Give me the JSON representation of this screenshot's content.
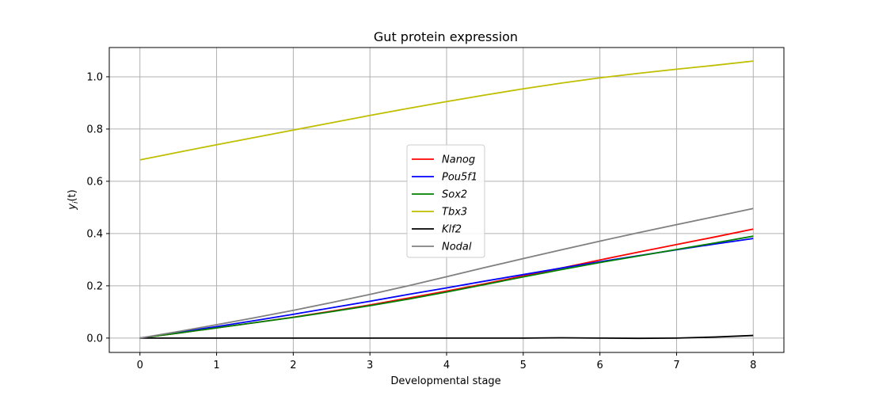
{
  "chart_data": {
    "type": "line",
    "title": "Gut protein expression",
    "xlabel": "Developmental stage",
    "ylabel": "y_i(t)",
    "ylabel_main": "y",
    "ylabel_sub": "i",
    "ylabel_rest": "(t)",
    "xlim": [
      -0.4,
      8.4
    ],
    "ylim": [
      -0.055,
      1.112
    ],
    "xticks": [
      0,
      1,
      2,
      3,
      4,
      5,
      6,
      7,
      8
    ],
    "xtick_labels": [
      "0",
      "1",
      "2",
      "3",
      "4",
      "5",
      "6",
      "7",
      "8"
    ],
    "yticks": [
      0.0,
      0.2,
      0.4,
      0.6,
      0.8,
      1.0
    ],
    "ytick_labels": [
      "0.0",
      "0.2",
      "0.4",
      "0.6",
      "0.8",
      "1.0"
    ],
    "grid": true,
    "legend_position": "center",
    "x": [
      0,
      0.5,
      1,
      1.5,
      2,
      2.5,
      3,
      3.5,
      4,
      4.5,
      5,
      5.5,
      6,
      6.5,
      7,
      7.5,
      8
    ],
    "series": [
      {
        "name": "Nanog",
        "color": "#ff0000",
        "values": [
          0,
          0.019,
          0.039,
          0.059,
          0.08,
          0.103,
          0.127,
          0.153,
          0.18,
          0.208,
          0.238,
          0.268,
          0.299,
          0.329,
          0.358,
          0.387,
          0.417
        ]
      },
      {
        "name": "Pou5f1",
        "color": "#0000ff",
        "values": [
          0,
          0.022,
          0.044,
          0.067,
          0.091,
          0.116,
          0.141,
          0.167,
          0.192,
          0.218,
          0.243,
          0.268,
          0.292,
          0.315,
          0.338,
          0.36,
          0.381
        ]
      },
      {
        "name": "Sox2",
        "color": "#008000",
        "values": [
          0,
          0.019,
          0.039,
          0.059,
          0.079,
          0.101,
          0.124,
          0.149,
          0.176,
          0.205,
          0.234,
          0.262,
          0.289,
          0.314,
          0.339,
          0.364,
          0.39
        ]
      },
      {
        "name": "Tbx3",
        "color": "#bfbf00",
        "values": [
          0.682,
          0.711,
          0.74,
          0.768,
          0.796,
          0.824,
          0.852,
          0.879,
          0.905,
          0.93,
          0.954,
          0.976,
          0.996,
          1.013,
          1.029,
          1.044,
          1.06
        ]
      },
      {
        "name": "Klf2",
        "color": "#000000",
        "values": [
          0,
          0,
          0,
          0,
          0,
          0,
          0,
          0,
          0,
          0,
          0,
          0.001,
          0,
          -0.001,
          0,
          0.004,
          0.01
        ]
      },
      {
        "name": "Nodal",
        "color": "#808080",
        "values": [
          0,
          0.025,
          0.051,
          0.078,
          0.106,
          0.136,
          0.167,
          0.2,
          0.235,
          0.27,
          0.304,
          0.338,
          0.371,
          0.403,
          0.434,
          0.465,
          0.496
        ]
      }
    ]
  }
}
